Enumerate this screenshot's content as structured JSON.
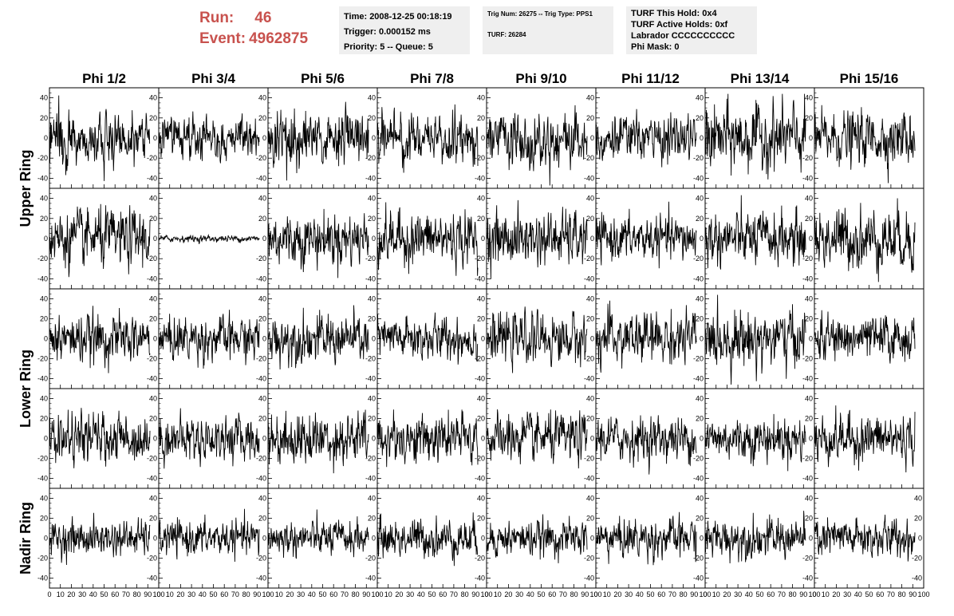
{
  "header": {
    "run_label": "Run:",
    "run_value": "46",
    "event_label": "Event:",
    "event_value": "4962875"
  },
  "info": {
    "time": "Time: 2008-12-25 00:18:19",
    "trigger": "Trigger: 0.000152 ms",
    "priority": "Priority: 5 -- Queue: 5",
    "trig_num": "Trig Num: 26275 -- Trig Type: PPS1",
    "turf": "TURF: 26284",
    "turf_hold": "TURF This Hold: 0x4",
    "turf_active": "TURF Active Holds: 0xf",
    "labrador": "Labrador CCCCCCCCCC",
    "phi_mask": "Phi Mask: 0"
  },
  "chart_data": {
    "type": "line",
    "columns": [
      "Phi 1/2",
      "Phi 3/4",
      "Phi 5/6",
      "Phi 7/8",
      "Phi 9/10",
      "Phi 11/12",
      "Phi 13/14",
      "Phi 15/16"
    ],
    "rows": [
      "Upper Ring",
      "Upper Ring",
      "Lower Ring",
      "Lower Ring",
      "Nadir Ring"
    ],
    "row_labels": [
      {
        "label": "Upper Ring",
        "rows": [
          0,
          1
        ]
      },
      {
        "label": "Lower Ring",
        "rows": [
          2,
          3
        ]
      },
      {
        "label": "Nadir Ring",
        "rows": [
          4,
          4
        ]
      }
    ],
    "xlim": [
      0,
      100
    ],
    "ylim": [
      -50,
      50
    ],
    "xticks": [
      0,
      10,
      20,
      30,
      40,
      50,
      60,
      70,
      80,
      90,
      100
    ],
    "xtick_labels": [
      "0",
      "10",
      "20",
      "30",
      "40",
      "50",
      "60",
      "70",
      "80",
      "90",
      "100"
    ],
    "yticks": [
      -40,
      -20,
      0,
      20,
      40
    ],
    "ytick_labels": [
      "-40",
      "-20",
      "0",
      "20",
      "40"
    ],
    "samples_per_trace": 260,
    "trace_x_max": 92,
    "amplitude_rms": [
      [
        11,
        9,
        12,
        11,
        13,
        10,
        15,
        12
      ],
      [
        13,
        1.5,
        12,
        12,
        12,
        10,
        12,
        14
      ],
      [
        11,
        10,
        11,
        10,
        11,
        12,
        13,
        10
      ],
      [
        11,
        10,
        12,
        11,
        11,
        10,
        10,
        11
      ],
      [
        8,
        8,
        8,
        9,
        8,
        9,
        9,
        9
      ]
    ],
    "grid": false,
    "legend": "none"
  },
  "colors": {
    "header_red": "#c8524e",
    "info_bg": "#efefef",
    "trace": "#000000"
  }
}
